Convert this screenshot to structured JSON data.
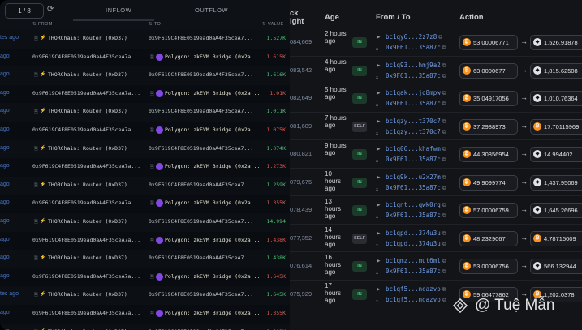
{
  "left": {
    "pager": "1 / 8",
    "tabs": [
      "INFLOW",
      "OUTFLOW"
    ],
    "headers": {
      "from": "FROM",
      "to": "TO",
      "value": "VALUE"
    },
    "rows": [
      {
        "time": "tes ago",
        "from": "THORChain: Router (0xD37)",
        "to": "0x9F619C4F8E0519ead0aA4F35ceA7...",
        "value": "1.527K",
        "vcolor": "#4bbf73",
        "fromNamed": true,
        "toNamed": false
      },
      {
        "time": "ago",
        "from": "0x9F619C4F8E0519ead0aA4F35ceA7a...",
        "to": "Polygon: zkEVM Bridge (0x2a...",
        "value": "1.615K",
        "vcolor": "#e05a4f",
        "fromNamed": false,
        "toNamed": true
      },
      {
        "time": "ago",
        "from": "THORChain: Router (0xD37)",
        "to": "0x9F619C4F8E0519ead0aA4F35ceA7...",
        "value": "1.616K",
        "vcolor": "#4bbf73",
        "fromNamed": true,
        "toNamed": false
      },
      {
        "time": "ago",
        "from": "0x9F619C4F8E0519ead0aA4F35ceA7a...",
        "to": "Polygon: zkEVM Bridge (0x2a...",
        "value": "1.01K",
        "vcolor": "#e05a4f",
        "fromNamed": false,
        "toNamed": true
      },
      {
        "time": "ago",
        "from": "THORChain: Router (0xD37)",
        "to": "0x9F619C4F8E0519ead0aA4F35ceA7...",
        "value": "1.011K",
        "vcolor": "#4bbf73",
        "fromNamed": true,
        "toNamed": false
      },
      {
        "time": "ago",
        "from": "0x9F619C4F8E0519ead0aA4F35ceA7a...",
        "to": "Polygon: zkEVM Bridge (0x2a...",
        "value": "1.075K",
        "vcolor": "#e05a4f",
        "fromNamed": false,
        "toNamed": true
      },
      {
        "time": "ago",
        "from": "THORChain: Router (0xD37)",
        "to": "0x9F619C4F8E0519ead0aA4F35ceA7...",
        "value": "1.074K",
        "vcolor": "#4bbf73",
        "fromNamed": true,
        "toNamed": false
      },
      {
        "time": "ago",
        "from": "0x9F619C4F8E0519ead0aA4F35ceA7a...",
        "to": "Polygon: zkEVM Bridge (0x2a...",
        "value": "1.273K",
        "vcolor": "#e05a4f",
        "fromNamed": false,
        "toNamed": true
      },
      {
        "time": "ago",
        "from": "THORChain: Router (0xD37)",
        "to": "0x9F619C4F8E0519ead0aA4F35ceA7...",
        "value": "1.259K",
        "vcolor": "#4bbf73",
        "fromNamed": true,
        "toNamed": false
      },
      {
        "time": "ago",
        "from": "0x9F619C4F8E0519ead0aA4F35ceA7a...",
        "to": "Polygon: zkEVM Bridge (0x2a...",
        "value": "1.355K",
        "vcolor": "#e05a4f",
        "fromNamed": false,
        "toNamed": true
      },
      {
        "time": "ago",
        "from": "THORChain: Router (0xD37)",
        "to": "0x9F619C4F8E0519ead0aA4F35ceA7...",
        "value": "14.994",
        "vcolor": "#4bbf73",
        "fromNamed": true,
        "toNamed": false
      },
      {
        "time": "ago",
        "from": "0x9F619C4F8E0519ead0aA4F35ceA7a...",
        "to": "Polygon: zkEVM Bridge (0x2a...",
        "value": "1.438K",
        "vcolor": "#e05a4f",
        "fromNamed": false,
        "toNamed": true
      },
      {
        "time": "ago",
        "from": "THORChain: Router (0xD37)",
        "to": "0x9F619C4F8E0519ead0aA4F35ceA7...",
        "value": "1.438K",
        "vcolor": "#4bbf73",
        "fromNamed": true,
        "toNamed": false
      },
      {
        "time": "ago",
        "from": "0x9F619C4F8E0519ead0aA4F35ceA7a...",
        "to": "Polygon: zkEVM Bridge (0x2a...",
        "value": "1.645K",
        "vcolor": "#e05a4f",
        "fromNamed": false,
        "toNamed": true
      },
      {
        "time": "tes ago",
        "from": "THORChain: Router (0xD37)",
        "to": "0x9F619C4F8E0519ead0aA4F35ceA7...",
        "value": "1.645K",
        "vcolor": "#4bbf73",
        "fromNamed": true,
        "toNamed": false
      },
      {
        "time": "ago",
        "from": "0x9F619C4F8E0519ead0aA4F35ceA7a...",
        "to": "Polygon: zkEVM Bridge (0x2a...",
        "value": "1.355K",
        "vcolor": "#e05a4f",
        "fromNamed": false,
        "toNamed": true
      },
      {
        "time": "ago",
        "from": "THORChain: Router (0xD37)",
        "to": "0x9F619C4F8E0519ead0aA4F35ceA7...",
        "value": "1.202K",
        "vcolor": "#4bbf73",
        "fromNamed": true,
        "toNamed": false
      }
    ]
  },
  "right": {
    "headers": {
      "block_top": "ck",
      "block_bottom": "ight",
      "age": "Age",
      "fromto": "From / To",
      "action": "Action"
    },
    "rows": [
      {
        "block": "084,669",
        "age": "2 hours ago",
        "dir": "IN",
        "from": "bc1qy6...2z7z8",
        "to": "0x9F61...35a87c",
        "a": "53.00006771",
        "acoin": "btc",
        "b": "1,526.91878",
        "bcoin": "rune"
      },
      {
        "block": "083,542",
        "age": "4 hours ago",
        "dir": "IN",
        "from": "bc1q93...hmj9a2",
        "to": "0x9F61...35a87c",
        "a": "63.0000677",
        "acoin": "btc",
        "b": "1,815.62508",
        "bcoin": "rune"
      },
      {
        "block": "082,649",
        "age": "5 hours ago",
        "dir": "IN",
        "from": "bc1qak...jq8mpw",
        "to": "0x9F61...35a87c",
        "a": "35.04917056",
        "acoin": "btc",
        "b": "1,010.76364",
        "bcoin": "rune"
      },
      {
        "block": "081,609",
        "age": "7 hours ago",
        "dir": "SELF",
        "from": "bc1qzy...t370c7",
        "to": "bc1qzy...t370c7",
        "a": "37.2988973",
        "acoin": "btc",
        "b": "17.70115969",
        "bcoin": "btc"
      },
      {
        "block": "080,821",
        "age": "9 hours ago",
        "dir": "IN",
        "from": "bc1q06...khafwm",
        "to": "0x9F61...35a87c",
        "a": "44.30856954",
        "acoin": "btc",
        "b": "14.994402",
        "bcoin": "rune"
      },
      {
        "block": "079,675",
        "age": "10 hours ago",
        "dir": "IN",
        "from": "bc1q9k...u2x27m",
        "to": "0x9F61...35a87c",
        "a": "49.9099774",
        "acoin": "btc",
        "b": "1,437.95069",
        "bcoin": "rune"
      },
      {
        "block": "078,439",
        "age": "13 hours ago",
        "dir": "IN",
        "from": "bc1qnt...qwk0rq",
        "to": "0x9F61...35a87c",
        "a": "57.00006759",
        "acoin": "btc",
        "b": "1,645.26696",
        "bcoin": "rune"
      },
      {
        "block": "077,352",
        "age": "14 hours ago",
        "dir": "SELF",
        "from": "bc1qpd...374u3u",
        "to": "bc1qpd...374u3u",
        "a": "48.2329067",
        "acoin": "btc",
        "b": "4.78715009",
        "bcoin": "btc"
      },
      {
        "block": "076,614",
        "age": "16 hours ago",
        "dir": "IN",
        "from": "bc1qmz...mut6ml",
        "to": "0x9F61...35a87c",
        "a": "53.00006756",
        "acoin": "btc",
        "b": "566.132944",
        "bcoin": "rune"
      },
      {
        "block": "075,929",
        "age": "17 hours ago",
        "dir": "IN",
        "from": "bc1qf5...ndazvp",
        "to": "bc1qf5...ndazvp",
        "a": "59.06477862",
        "acoin": "btc",
        "b": "1,202.0378",
        "bcoin": "btc"
      }
    ]
  },
  "watermark": "@ Tuệ Mẫn"
}
